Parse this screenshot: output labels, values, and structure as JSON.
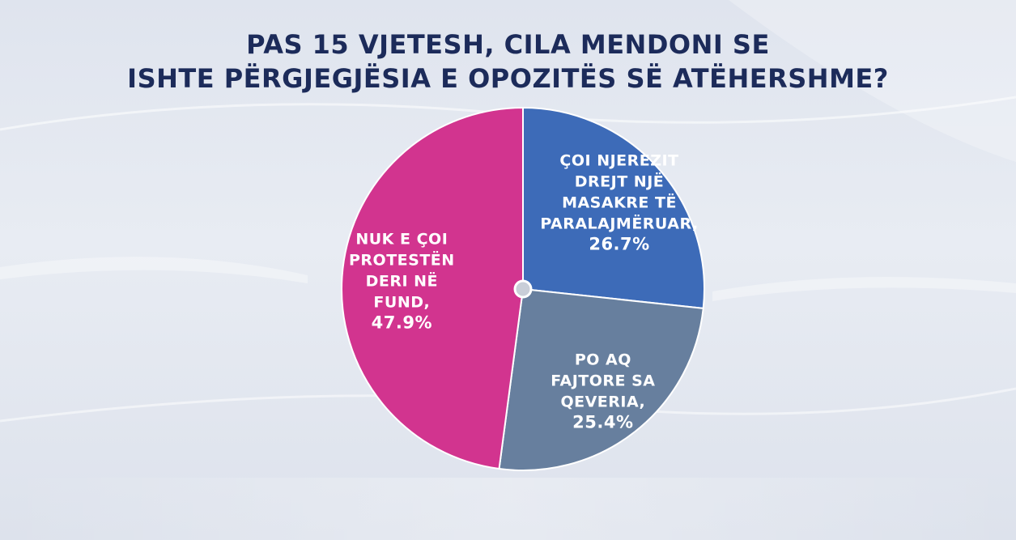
{
  "title": {
    "line1": "PAS 15 VJETESH, CILA MENDONI SE",
    "line2": "ISHTE PËRGJEGJËSIA E OPOZITËS SË ATËHERSHME?"
  },
  "chart_data": {
    "type": "pie",
    "title": "PAS 15 VJETESH, CILA MENDONI SE ISHTE PËRGJEGJËSIA E OPOZITËS SË ATËHERSHME?",
    "start": "top",
    "direction": "clockwise",
    "slices": [
      {
        "label_lines": [
          "ÇOI NJEREZIT",
          "DREJT NJË",
          "MASAKRE TË",
          "PARALAJMËRUAR,"
        ],
        "value": 26.7,
        "value_text": "26.7%",
        "color": "#3d6bb8"
      },
      {
        "label_lines": [
          "PO AQ",
          "FAJTORE SA",
          "QEVERIA,"
        ],
        "value": 25.4,
        "value_text": "25.4%",
        "color": "#677f9e"
      },
      {
        "label_lines": [
          "NUK E ÇOI",
          "PROTESTËN",
          "DERI NË",
          "FUND,"
        ],
        "value": 47.9,
        "value_text": "47.9%",
        "color": "#d2348f"
      }
    ]
  }
}
